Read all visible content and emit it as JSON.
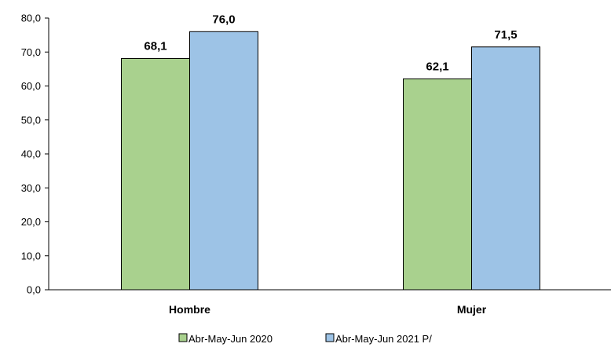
{
  "chart_data": {
    "type": "bar",
    "categories": [
      "Hombre",
      "Mujer"
    ],
    "series": [
      {
        "name": "Abr-May-Jun 2020",
        "values": [
          68.1,
          62.1
        ],
        "labels": [
          "68,1",
          "62,1"
        ],
        "color": "#a9d18e"
      },
      {
        "name": "Abr-May-Jun 2021 P/",
        "values": [
          76.0,
          71.5
        ],
        "labels": [
          "76,0",
          "71,5"
        ],
        "color": "#9dc3e6"
      }
    ],
    "ylim": [
      0,
      80
    ],
    "yticks": [
      0,
      10,
      20,
      30,
      40,
      50,
      60,
      70,
      80
    ],
    "ytick_labels": [
      "0,0",
      "10,0",
      "20,0",
      "30,0",
      "40,0",
      "50,0",
      "60,0",
      "70,0",
      "80,0"
    ],
    "grid": false,
    "legend_position": "bottom",
    "axis_color": "#000000",
    "bar_outline_color": "#000000"
  }
}
